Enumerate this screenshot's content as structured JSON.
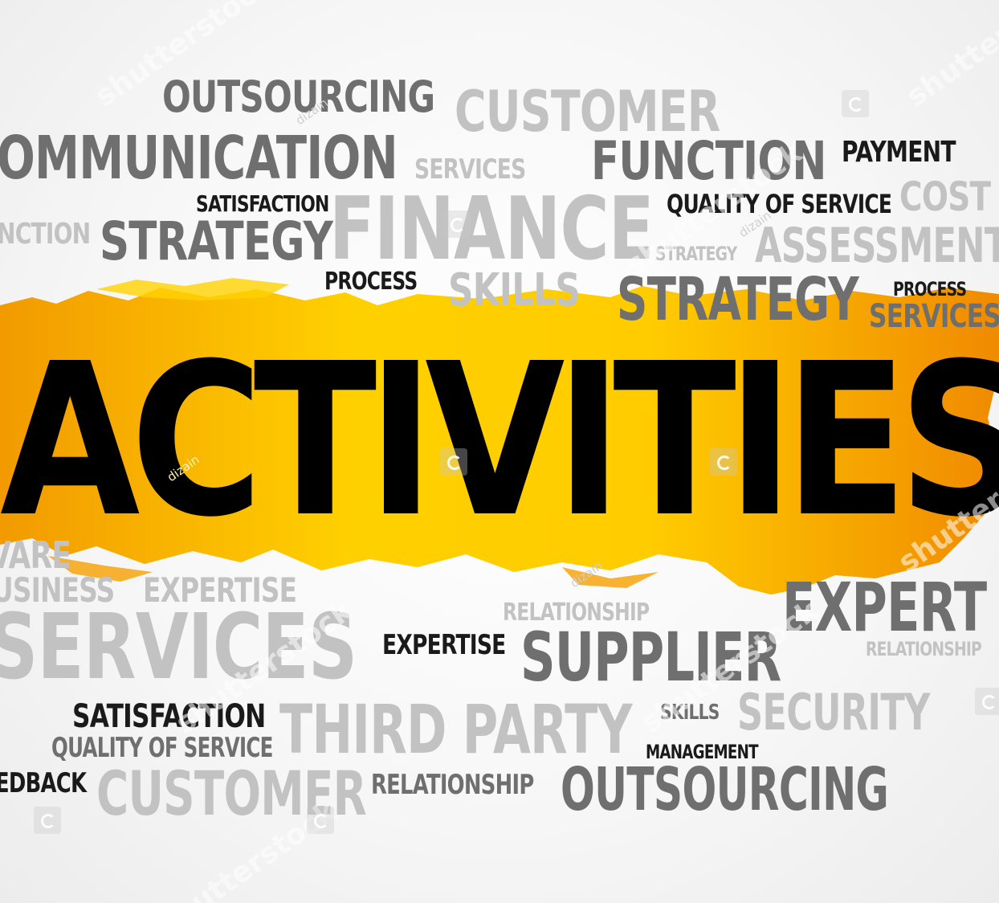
{
  "main_word": "ACTIVITIES",
  "colors": {
    "brush_light": "#ffd000",
    "brush_dark": "#f08a00",
    "main_text": "#000000",
    "dark": "#1a1a1a",
    "mid": "#6f6f6f",
    "light": "#c2c2c2"
  },
  "words": [
    {
      "text": "OUTSOURCING",
      "tone": "mid"
    },
    {
      "text": "CUSTOMER",
      "tone": "light"
    },
    {
      "text": "OMMUNICATION",
      "tone": "mid"
    },
    {
      "text": "SERVICES",
      "tone": "light"
    },
    {
      "text": "FUNCTION",
      "tone": "mid"
    },
    {
      "text": "PAYMENT",
      "tone": "dark"
    },
    {
      "text": "SATISFACTION",
      "tone": "dark"
    },
    {
      "text": "QUALITY OF SERVICE",
      "tone": "dark"
    },
    {
      "text": "COST",
      "tone": "light"
    },
    {
      "text": "NCTION",
      "tone": "light"
    },
    {
      "text": "STRATEGY",
      "tone": "mid"
    },
    {
      "text": "FINANCE",
      "tone": "light"
    },
    {
      "text": "STRATEGY",
      "tone": "light"
    },
    {
      "text": "ASSESSMENT",
      "tone": "light"
    },
    {
      "text": "PROCESS",
      "tone": "dark"
    },
    {
      "text": "SKILLS",
      "tone": "light"
    },
    {
      "text": "STRATEGY",
      "tone": "mid"
    },
    {
      "text": "PROCESS",
      "tone": "dark"
    },
    {
      "text": "SERVICES",
      "tone": "mid"
    },
    {
      "text": "VARE",
      "tone": "light"
    },
    {
      "text": "USINESS",
      "tone": "light"
    },
    {
      "text": "EXPERTISE",
      "tone": "light"
    },
    {
      "text": "EXPERT",
      "tone": "mid"
    },
    {
      "text": "RELATIONSHIP",
      "tone": "light"
    },
    {
      "text": "SERVICES",
      "tone": "light"
    },
    {
      "text": "EXPERTISE",
      "tone": "dark"
    },
    {
      "text": "SUPPLIER",
      "tone": "mid"
    },
    {
      "text": "RELATIONSHIP",
      "tone": "light"
    },
    {
      "text": "SATISFACTION",
      "tone": "dark"
    },
    {
      "text": "THIRD PARTY",
      "tone": "light"
    },
    {
      "text": "SKILLS",
      "tone": "mid"
    },
    {
      "text": "SECURITY",
      "tone": "light"
    },
    {
      "text": "QUALITY OF SERVICE",
      "tone": "mid"
    },
    {
      "text": "MANAGEMENT",
      "tone": "dark"
    },
    {
      "text": "EDBACK",
      "tone": "dark"
    },
    {
      "text": "CUSTOMER",
      "tone": "light"
    },
    {
      "text": "RELATIONSHIP",
      "tone": "mid"
    },
    {
      "text": "OUTSOURCING",
      "tone": "mid"
    }
  ],
  "watermarks": [
    "shutterstock",
    "shutterstock",
    "shutterstock",
    "shutterstock",
    "shutterstock",
    "shutterstock",
    "shutterstock"
  ],
  "watermark_credits": [
    "dizain",
    "dizain",
    "dizain",
    "dizain"
  ]
}
